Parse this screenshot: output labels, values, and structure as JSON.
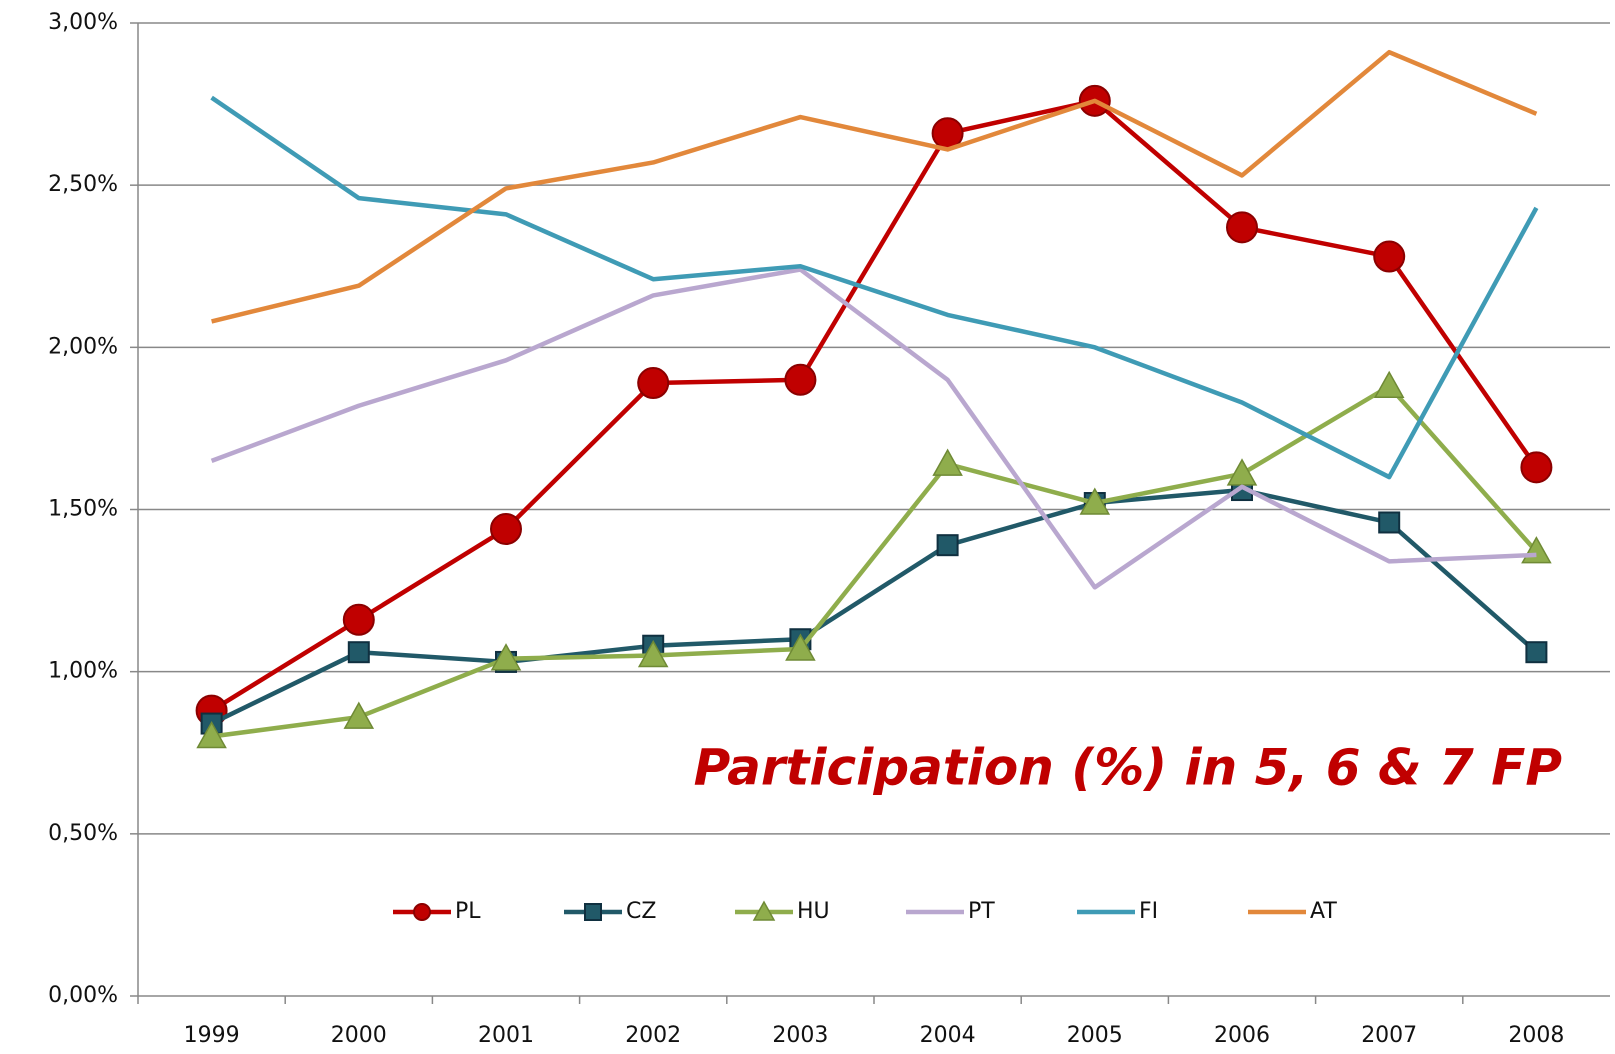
{
  "chart_data": {
    "type": "line",
    "annotation": "Participation (%) in 5, 6 & 7 FP",
    "categories": [
      "1999",
      "2000",
      "2001",
      "2002",
      "2003",
      "2004",
      "2005",
      "2006",
      "2007",
      "2008"
    ],
    "series": [
      {
        "name": "PL",
        "color": "#c00000",
        "marker": "circle",
        "values": [
          0.88,
          1.16,
          1.44,
          1.89,
          1.9,
          2.66,
          2.76,
          2.37,
          2.28,
          1.63
        ]
      },
      {
        "name": "CZ",
        "color": "#215968",
        "marker": "square",
        "values": [
          0.84,
          1.06,
          1.03,
          1.08,
          1.1,
          1.39,
          1.52,
          1.56,
          1.46,
          1.06
        ]
      },
      {
        "name": "HU",
        "color": "#8fad4c",
        "marker": "triangle",
        "values": [
          0.8,
          0.86,
          1.04,
          1.05,
          1.07,
          1.64,
          1.52,
          1.61,
          1.88,
          1.37
        ]
      },
      {
        "name": "PT",
        "color": "#b9a7cf",
        "marker": "none",
        "values": [
          1.65,
          1.82,
          1.96,
          2.16,
          2.24,
          1.9,
          1.26,
          1.57,
          1.34,
          1.36
        ]
      },
      {
        "name": "FI",
        "color": "#3f9bb5",
        "marker": "none",
        "values": [
          2.77,
          2.46,
          2.41,
          2.21,
          2.25,
          2.1,
          2.0,
          1.83,
          1.6,
          2.43
        ]
      },
      {
        "name": "AT",
        "color": "#e2883b",
        "marker": "none",
        "values": [
          2.08,
          2.19,
          2.49,
          2.57,
          2.71,
          2.61,
          2.76,
          2.53,
          2.91,
          2.72
        ]
      }
    ],
    "ylim": [
      0,
      3
    ],
    "yticks": [
      {
        "value": 0,
        "label": "0,00%"
      },
      {
        "value": 0.5,
        "label": "0,50%"
      },
      {
        "value": 1,
        "label": "1,00%"
      },
      {
        "value": 1.5,
        "label": "1,50%"
      },
      {
        "value": 2,
        "label": "2,00%"
      },
      {
        "value": 2.5,
        "label": "2,50%"
      },
      {
        "value": 3,
        "label": "3,00%"
      }
    ],
    "grid": true,
    "legend": "lower center"
  }
}
